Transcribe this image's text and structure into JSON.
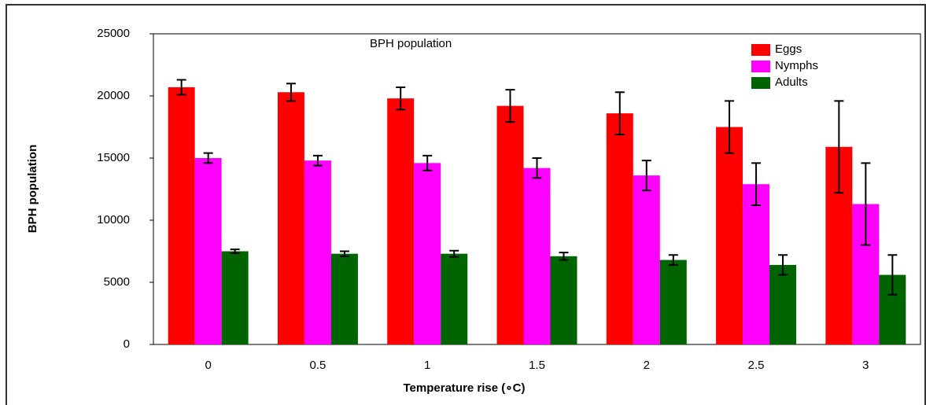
{
  "chart_data": {
    "type": "bar",
    "title": "BPH population",
    "x_label": "Temperature rise (∘C)",
    "y_label": "BPH population",
    "categories": [
      "0",
      "0.5",
      "1",
      "1.5",
      "2",
      "2.5",
      "3"
    ],
    "series": [
      {
        "name": "Eggs",
        "color": "#ff0000",
        "values": [
          20700,
          20300,
          19800,
          19200,
          18600,
          17500,
          15900
        ],
        "errors": [
          600,
          700,
          900,
          1300,
          1700,
          2100,
          3700
        ]
      },
      {
        "name": "Nymphs",
        "color": "#ff00ff",
        "values": [
          15000,
          14800,
          14600,
          14200,
          13600,
          12900,
          11300
        ],
        "errors": [
          400,
          400,
          600,
          800,
          1200,
          1700,
          3300
        ]
      },
      {
        "name": "Adults",
        "color": "#006400",
        "values": [
          7500,
          7300,
          7300,
          7100,
          6800,
          6400,
          5600
        ],
        "errors": [
          150,
          200,
          250,
          300,
          400,
          800,
          1600
        ]
      }
    ],
    "ylim": [
      0,
      25000
    ],
    "yticks": [
      0,
      5000,
      10000,
      15000,
      20000,
      25000
    ],
    "grid": false,
    "legend": "upper right"
  }
}
